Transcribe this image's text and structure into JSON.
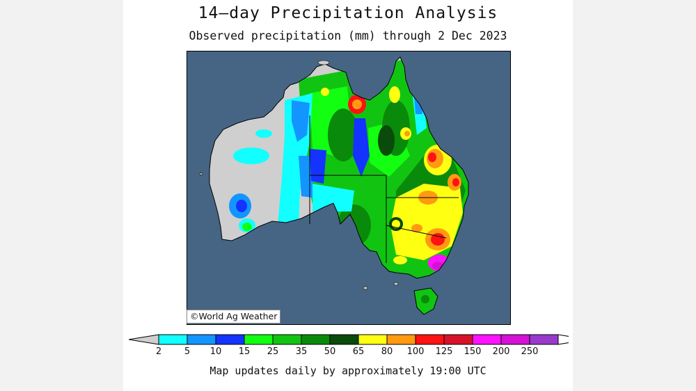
{
  "header": {
    "title": "14–day Precipitation Analysis",
    "subtitle": "Observed precipitation (mm) through 2 Dec 2023"
  },
  "map": {
    "region": "Australia",
    "ocean_color": "#466584",
    "credit": "©World Ag Weather"
  },
  "legend": {
    "below_color": "#cfcfcf",
    "above_color": "#ffffff",
    "bins": [
      {
        "color": "#12ffff"
      },
      {
        "color": "#1295ff"
      },
      {
        "color": "#1433ff"
      },
      {
        "color": "#12ff12"
      },
      {
        "color": "#12c412"
      },
      {
        "color": "#0a8a0a"
      },
      {
        "color": "#0a4a0a"
      },
      {
        "color": "#ffff12"
      },
      {
        "color": "#ff9a12"
      },
      {
        "color": "#ff1212"
      },
      {
        "color": "#d8122a"
      },
      {
        "color": "#ff12ff"
      },
      {
        "color": "#d412d4"
      },
      {
        "color": "#9a3acd"
      }
    ],
    "ticks": [
      "2",
      "5",
      "10",
      "15",
      "25",
      "35",
      "50",
      "65",
      "80",
      "100",
      "125",
      "150",
      "200",
      "250"
    ]
  },
  "footer": {
    "note": "Map updates daily by approximately 19:00 UTC"
  }
}
